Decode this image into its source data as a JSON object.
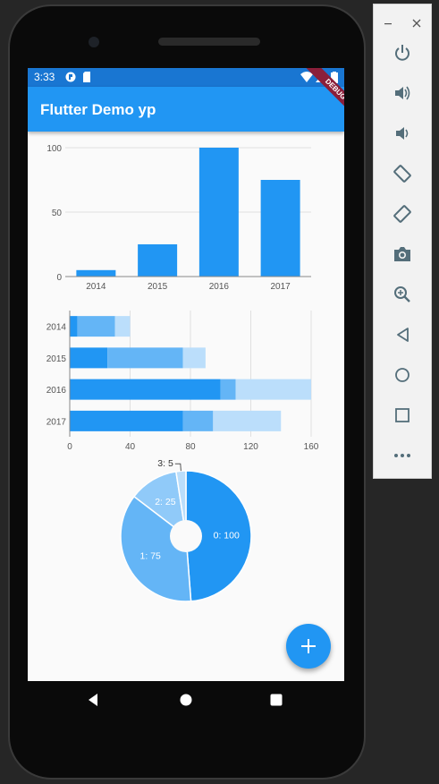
{
  "status_bar": {
    "time": "3:33"
  },
  "app_bar": {
    "title": "Flutter Demo yp"
  },
  "debug_banner": "DEBUG",
  "charts": {
    "ticks_bar_y": [
      "0",
      "50",
      "100"
    ],
    "ticks_hbar_x": [
      "0",
      "40",
      "80",
      "120",
      "160"
    ]
  },
  "chart_data": [
    {
      "type": "bar",
      "categories": [
        "2014",
        "2015",
        "2016",
        "2017"
      ],
      "values": [
        5,
        25,
        100,
        75
      ],
      "ylim": [
        0,
        100
      ],
      "grid": true,
      "colors": [
        "#2196f3"
      ]
    },
    {
      "type": "bar",
      "orientation": "horizontal",
      "stacked": true,
      "categories": [
        "2014",
        "2015",
        "2016",
        "2017"
      ],
      "series": [
        {
          "values": [
            5,
            25,
            100,
            75
          ]
        },
        {
          "values": [
            25,
            50,
            10,
            20
          ]
        },
        {
          "values": [
            10,
            15,
            50,
            45
          ]
        }
      ],
      "xlim": [
        0,
        160
      ],
      "grid": true,
      "colors": [
        "#2196f3",
        "#64b5f6",
        "#bbdefb"
      ]
    },
    {
      "type": "pie",
      "donut": true,
      "labels": [
        "0: 100",
        "1: 75",
        "2: 25",
        "3: 5"
      ],
      "values": [
        100,
        75,
        25,
        5
      ],
      "colors": [
        "#2196f3",
        "#64b5f6",
        "#90caf9",
        "#bbdefb"
      ]
    }
  ],
  "fab": {
    "icon": "plus-icon"
  },
  "emulator": {
    "icons": [
      "minimize-icon",
      "close-icon",
      "power-icon",
      "volume-up-icon",
      "volume-down-icon",
      "rotate-left-icon",
      "rotate-right-icon",
      "camera-icon",
      "zoom-icon",
      "back-icon",
      "home-icon",
      "overview-icon",
      "more-icon"
    ]
  }
}
